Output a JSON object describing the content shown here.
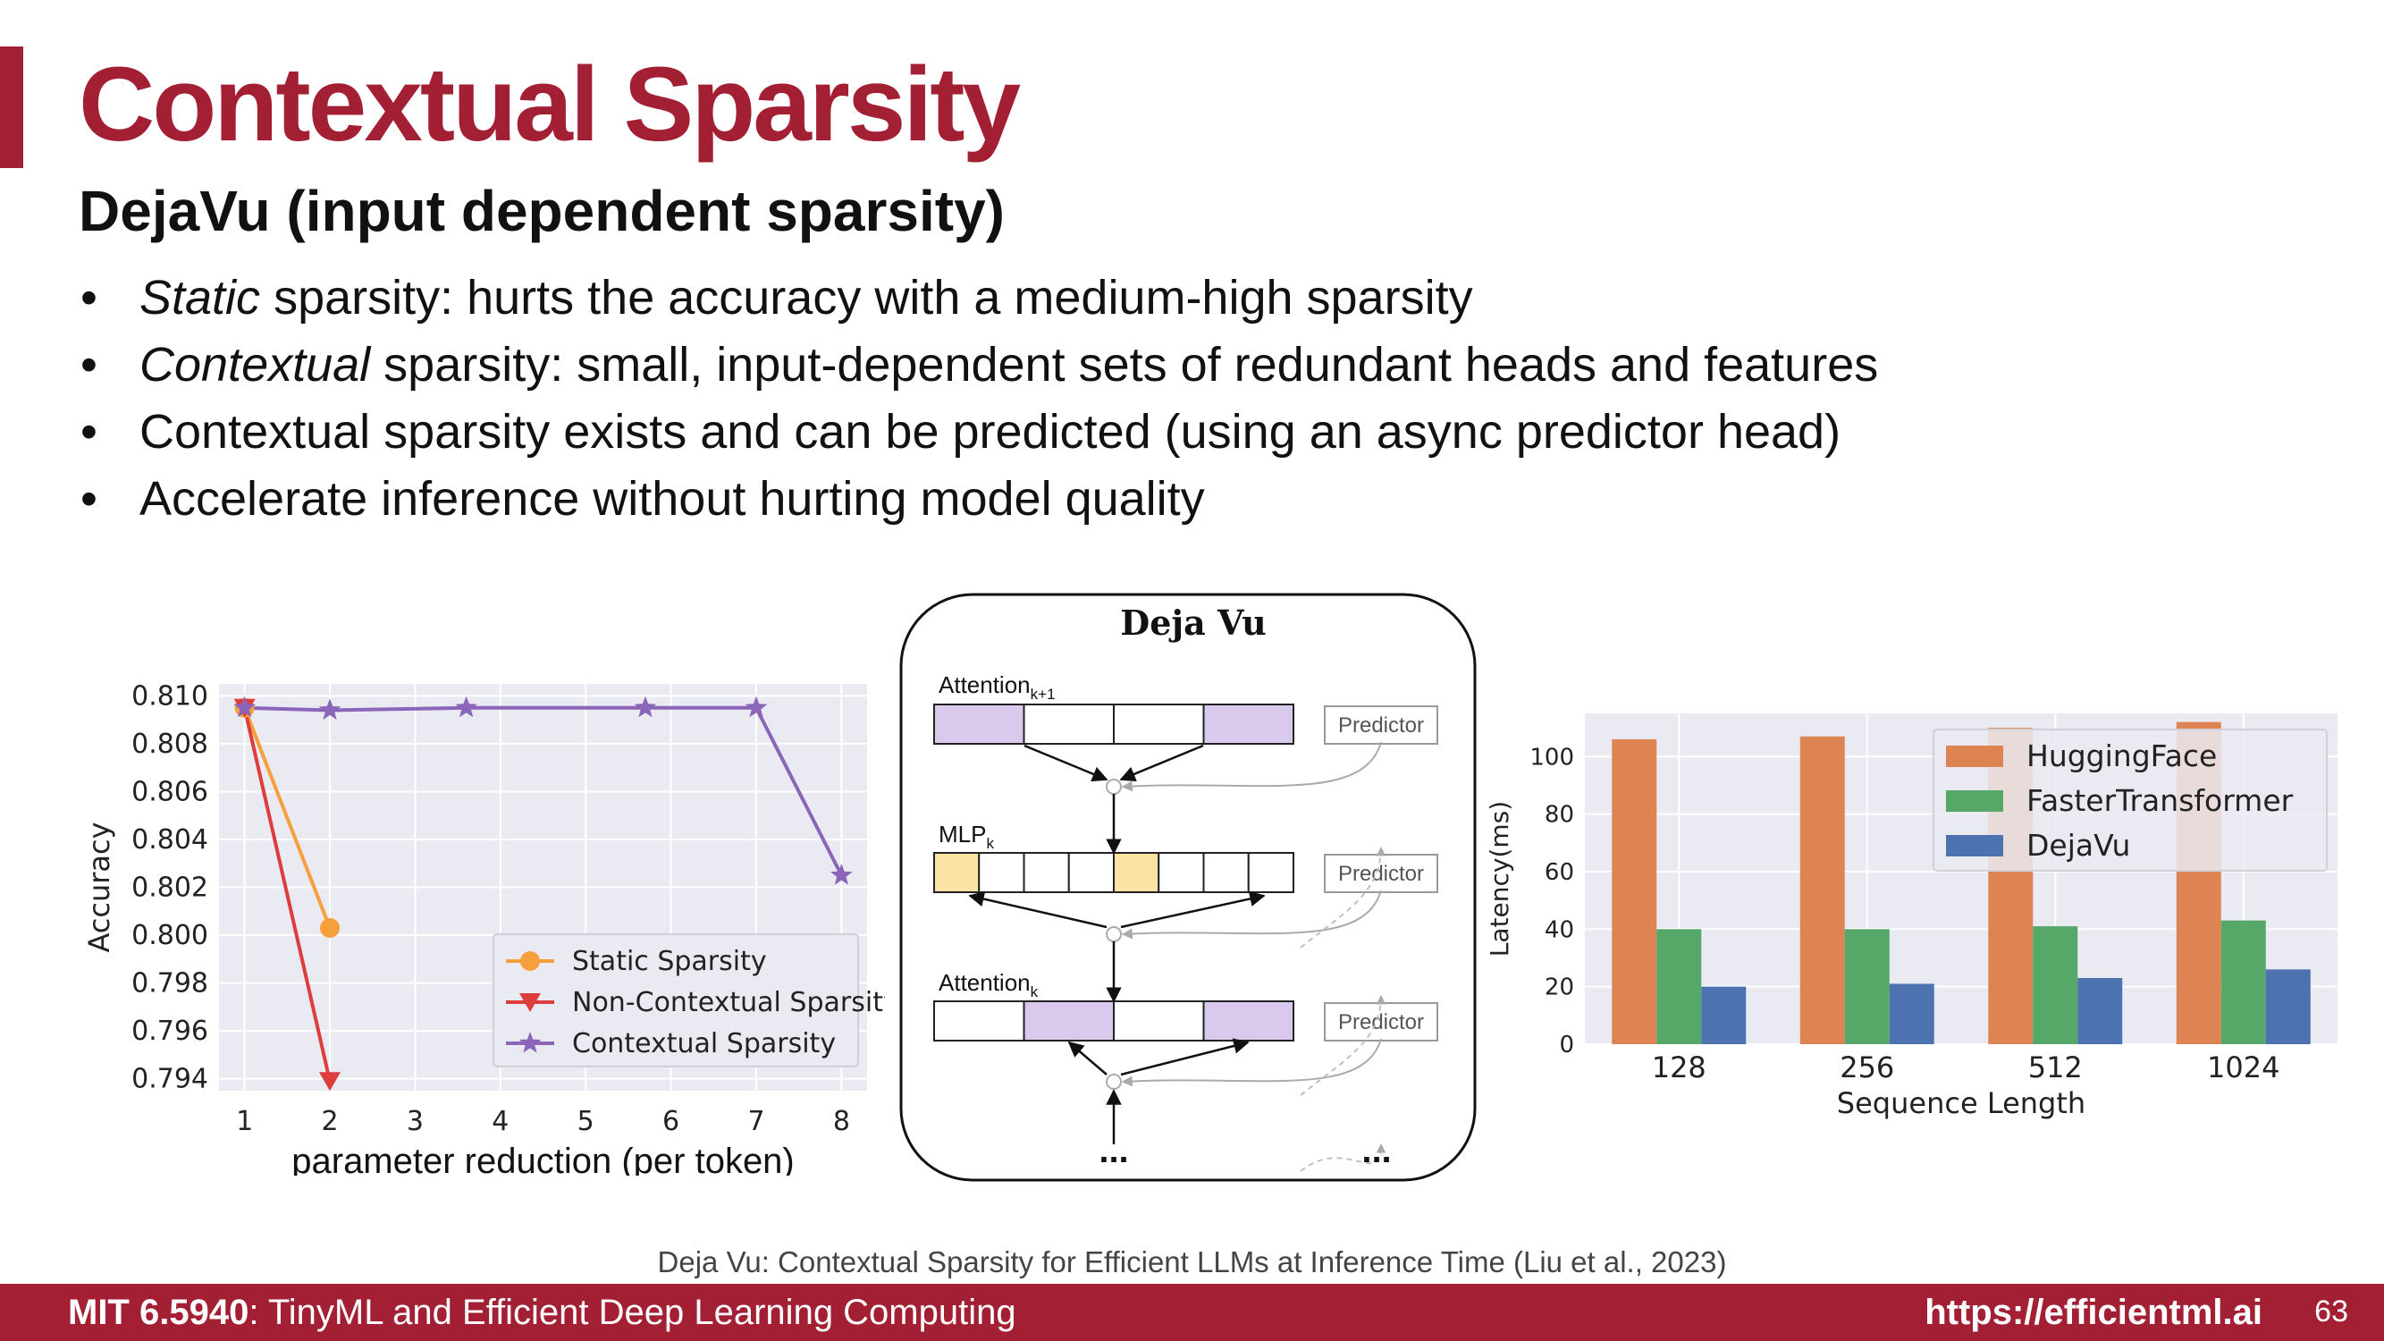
{
  "slide": {
    "title": "Contextual Sparsity",
    "subtitle": "DejaVu (input dependent sparsity)",
    "bullets": [
      {
        "emph": "Static",
        "rest": " sparsity: hurts the accuracy with a medium-high sparsity"
      },
      {
        "emph": "Contextual",
        "rest": " sparsity: small, input-dependent sets of redundant heads and features"
      },
      {
        "emph": "",
        "rest": "Contextual sparsity exists and can be predicted (using an async predictor head)"
      },
      {
        "emph": "",
        "rest": "Accelerate inference without hurting model quality"
      }
    ],
    "citation": "Deja Vu: Contextual Sparsity for Efficient LLMs at Inference Time (Liu et al., 2023)"
  },
  "footer": {
    "course_code": "MIT 6.5940",
    "course_name": ": TinyML and Efficient Deep Learning Computing",
    "url": "https://efficientml.ai",
    "page": "63"
  },
  "diagram": {
    "title": "Deja Vu",
    "layer_top": {
      "name": "Attention",
      "sub": "k+1"
    },
    "layer_mid": {
      "name": "MLP",
      "sub": "k"
    },
    "layer_bot": {
      "name": "Attention",
      "sub": "k"
    },
    "predictor_label": "Predictor",
    "ellipsis": "..."
  },
  "colors": {
    "accent": "#a31f34",
    "plot_bg": "#eaeaf2",
    "static": "#f5a03c",
    "noncontextual": "#dd3d3d",
    "contextual": "#8b65b8",
    "huggingface": "#dd8452",
    "fastertransformer": "#55a868",
    "dejavu": "#4c72b0",
    "attn_fill": "#d9c9ec",
    "mlp_fill": "#fbe3a5"
  },
  "chart_data": [
    {
      "type": "line",
      "xlabel": "parameter reduction (per token)",
      "ylabel": "Accuracy",
      "xlim": [
        0.7,
        8.3
      ],
      "ylim": [
        0.7935,
        0.8105
      ],
      "x_ticks": [
        "1",
        "2",
        "3",
        "4",
        "5",
        "6",
        "7",
        "8"
      ],
      "y_ticks": [
        "0.810",
        "0.808",
        "0.806",
        "0.804",
        "0.802",
        "0.800",
        "0.798",
        "0.796",
        "0.794"
      ],
      "grid": true,
      "legend_position": "bottom-right",
      "series": [
        {
          "name": "Static Sparsity",
          "marker": "circle",
          "x": [
            1,
            2
          ],
          "y": [
            0.8095,
            0.8003
          ]
        },
        {
          "name": "Non-Contextual Sparsity",
          "marker": "triangle-down",
          "x": [
            1,
            2
          ],
          "y": [
            0.8095,
            0.7939
          ]
        },
        {
          "name": "Contextual Sparsity",
          "marker": "star",
          "x": [
            1,
            2,
            3.6,
            5.7,
            7,
            8
          ],
          "y": [
            0.8095,
            0.8094,
            0.8095,
            0.8095,
            0.8095,
            0.8025
          ]
        }
      ]
    },
    {
      "type": "bar",
      "xlabel": "Sequence Length",
      "ylabel": "Latency(ms)",
      "categories": [
        "128",
        "256",
        "512",
        "1024"
      ],
      "ylim": [
        0,
        115
      ],
      "y_ticks": [
        "0",
        "20",
        "40",
        "60",
        "80",
        "100"
      ],
      "grid": true,
      "legend_position": "top-right",
      "series": [
        {
          "name": "HuggingFace",
          "values": [
            106,
            107,
            110,
            112
          ]
        },
        {
          "name": "FasterTransformer",
          "values": [
            40,
            40,
            41,
            43
          ]
        },
        {
          "name": "DejaVu",
          "values": [
            20,
            21,
            23,
            26
          ]
        }
      ]
    }
  ]
}
